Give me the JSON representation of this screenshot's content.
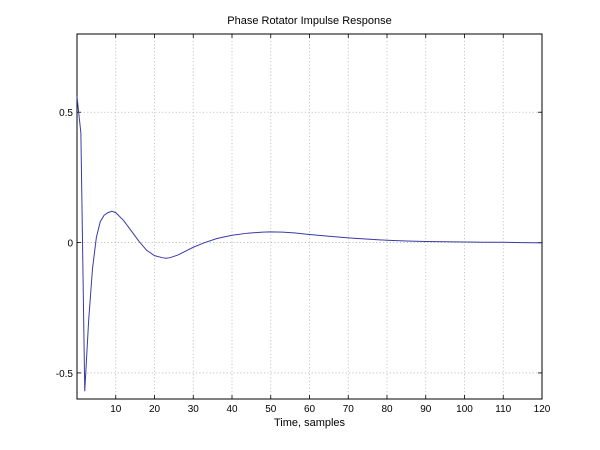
{
  "chart_data": {
    "type": "line",
    "title": "Phase Rotator Impulse Response",
    "xlabel": "Time, samples",
    "ylabel": "",
    "xlim": [
      0,
      120
    ],
    "ylim": [
      -0.6,
      0.8
    ],
    "grid": true,
    "x_ticks": [
      10,
      20,
      30,
      40,
      50,
      60,
      70,
      80,
      90,
      100,
      110,
      120
    ],
    "x_tick_labels": [
      "10",
      "20",
      "30",
      "40",
      "50",
      "60",
      "70",
      "80",
      "90",
      "100",
      "110",
      "120"
    ],
    "y_ticks": [
      -0.5,
      0,
      0.5
    ],
    "y_tick_labels": [
      "-0.5",
      "0",
      "0.5"
    ],
    "series": [
      {
        "color": "#3a3aa8",
        "x": [
          0,
          1,
          2,
          3,
          4,
          5,
          6,
          7,
          8,
          9,
          10,
          12,
          14,
          16,
          18,
          20,
          22,
          23,
          24,
          26,
          28,
          30,
          33,
          36,
          40,
          44,
          48,
          50,
          53,
          56,
          60,
          65,
          70,
          75,
          80,
          85,
          90,
          95,
          100,
          105,
          110,
          115,
          120
        ],
        "y": [
          0.56,
          0.42,
          -0.57,
          -0.3,
          -0.1,
          0.02,
          0.08,
          0.105,
          0.115,
          0.12,
          0.115,
          0.085,
          0.045,
          0.005,
          -0.03,
          -0.05,
          -0.058,
          -0.06,
          -0.058,
          -0.048,
          -0.033,
          -0.018,
          0.0,
          0.015,
          0.028,
          0.036,
          0.04,
          0.041,
          0.04,
          0.037,
          0.031,
          0.024,
          0.018,
          0.013,
          0.009,
          0.006,
          0.004,
          0.003,
          0.002,
          0.001,
          0.001,
          0.0,
          -0.001
        ]
      }
    ]
  }
}
